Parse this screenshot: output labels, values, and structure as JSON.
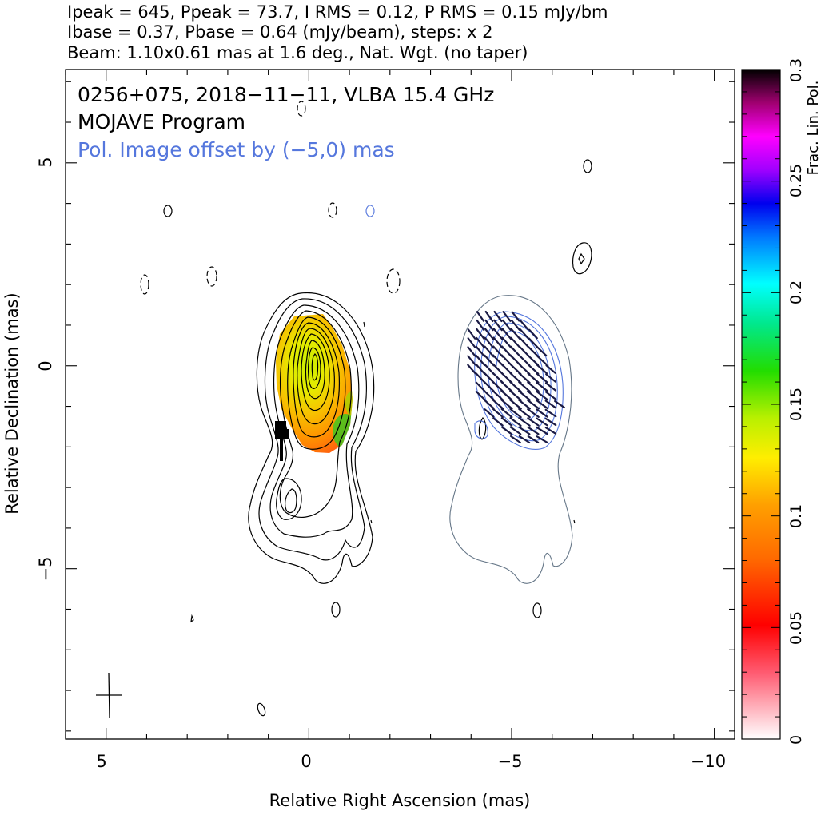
{
  "header": {
    "line1": "Ipeak = 645, Ppeak = 73.7, I RMS = 0.12, P RMS = 0.15 mJy/bm",
    "line2": "Ibase = 0.37, Pbase = 0.64 (mJy/beam), steps: x 2",
    "line3": "Beam: 1.10x0.61 mas at 1.6 deg., Nat. Wgt. (no taper)"
  },
  "annotations": {
    "source": "0256+075, 2018−11−11, VLBA 15.4 GHz",
    "program": "MOJAVE Program",
    "pol_offset": "Pol. Image offset by (−5,0) mas"
  },
  "colors": {
    "pol_offset_text": "#5577dd",
    "pol_contours": "#5577dd",
    "offset_contours": "#667788",
    "evpa_ticks": "#1a1a44"
  },
  "chart_data": {
    "type": "heatmap",
    "title": "0256+075, 2018−11−11, VLBA 15.4 GHz",
    "xlabel": "Relative Right Ascension (mas)",
    "ylabel": "Relative Declination (mas)",
    "xlim": [
      6,
      -10.5
    ],
    "ylim": [
      -9.2,
      7.3
    ],
    "x_ticks": [
      5,
      0,
      -5,
      -10
    ],
    "x_tick_labels": [
      "5",
      "0",
      "−5",
      "−10"
    ],
    "y_ticks": [
      5,
      0,
      -5
    ],
    "y_tick_labels": [
      "5",
      "0",
      "−5"
    ],
    "colorbar": {
      "label": "Frac. Lin. Pol.",
      "range": [
        0,
        0.3
      ],
      "ticks": [
        0,
        0.05,
        0.1,
        0.15,
        0.2,
        0.25,
        0.3
      ],
      "tick_labels": [
        "0",
        "0.05",
        "0.1",
        "0.15",
        "0.2",
        "0.25",
        "0.3"
      ]
    },
    "intensity": {
      "peak_mJy_per_beam": 645,
      "base_mJy_per_beam": 0.37,
      "step_factor": 2,
      "core_position": [
        -0.2,
        -0.1
      ]
    },
    "polarization": {
      "peak_mJy_per_beam": 73.7,
      "base_mJy_per_beam": 0.64,
      "image_offset": [
        -5,
        0
      ]
    },
    "beam": {
      "major_mas": 1.1,
      "minor_mas": 0.61,
      "pa_deg": 1.6,
      "weighting": "Nat. Wgt. (no taper)",
      "position": [
        5,
        -8.2
      ]
    }
  }
}
